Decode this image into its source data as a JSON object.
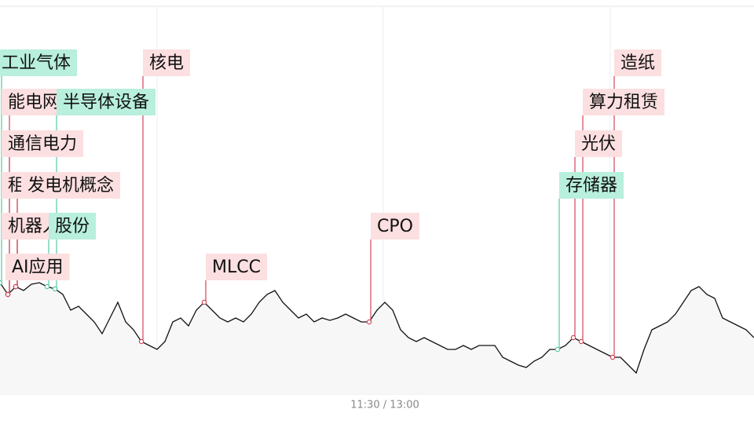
{
  "chart_data": {
    "type": "line",
    "categories": [
      null,
      null,
      null,
      null,
      null,
      null,
      null,
      null,
      null,
      null,
      null,
      null,
      null,
      null,
      null,
      null,
      null,
      null,
      null,
      null,
      null,
      null,
      null,
      null,
      null,
      null,
      null,
      null,
      null,
      null,
      null,
      null,
      null,
      null,
      null,
      null,
      null,
      null,
      null,
      null,
      null,
      null,
      null,
      null,
      null,
      null,
      null,
      null,
      null,
      "11:30 / 13:00",
      null,
      null,
      null,
      null,
      null,
      null,
      null,
      null,
      null,
      null,
      null,
      null,
      null,
      null,
      null,
      null,
      null,
      null,
      null,
      null,
      null,
      null,
      null,
      null,
      null,
      null,
      null,
      null,
      null,
      null,
      null,
      null,
      null,
      null,
      null,
      null,
      null,
      null,
      null,
      null,
      null,
      null,
      null,
      null,
      null,
      null,
      null
    ],
    "values": [
      15,
      13.5,
      14.5,
      14,
      14.8,
      15,
      14.5,
      14.2,
      13.5,
      11.5,
      12,
      11,
      10,
      8.5,
      10.5,
      12.5,
      10,
      9,
      7.5,
      7,
      6.5,
      7.5,
      10,
      10.5,
      9.5,
      11.5,
      12.5,
      11.5,
      10.5,
      10,
      10.5,
      10,
      11,
      12.5,
      13.5,
      14,
      12.5,
      11.5,
      10.5,
      11,
      10,
      10.5,
      10.2,
      10.5,
      11,
      10.5,
      10,
      10,
      11.5,
      12.5,
      11.5,
      9,
      8,
      7.5,
      8,
      7.5,
      7,
      6.5,
      6.5,
      7,
      6.5,
      7,
      7,
      7,
      5.5,
      5,
      4.5,
      4.2,
      5,
      5.5,
      6.5,
      6.5,
      7,
      8,
      7.5,
      7,
      6.5,
      6,
      5.5,
      5.5,
      4.5,
      3.5,
      6.5,
      9,
      9.5,
      10,
      11,
      12.5,
      14,
      14.5,
      13.5,
      13,
      10.5,
      10,
      9.5,
      9,
      8
    ],
    "color": "#111111",
    "ylim": [
      0,
      50
    ],
    "annotations": [
      {
        "text": "工业气体",
        "at": 0,
        "color": "green"
      },
      {
        "text": "能电网",
        "at": 1,
        "color": "red"
      },
      {
        "text": "半导体设备",
        "at": 7,
        "color": "green"
      },
      {
        "text": "通信电力",
        "at": 1,
        "color": "red"
      },
      {
        "text": "租赁",
        "at": 2,
        "color": "red"
      },
      {
        "text": "发电机概念",
        "at": 2,
        "color": "red"
      },
      {
        "text": "机器人",
        "at": 2,
        "color": "red"
      },
      {
        "text": "股份",
        "at": 6,
        "color": "green"
      },
      {
        "text": "AI应用",
        "at": 1,
        "color": "red"
      },
      {
        "text": "核电",
        "at": 18,
        "color": "red"
      },
      {
        "text": "MLCC",
        "at": 26,
        "color": "red"
      },
      {
        "text": "CPO",
        "at": 47,
        "color": "red"
      },
      {
        "text": "造纸",
        "at": 78,
        "color": "red"
      },
      {
        "text": "算力租赁",
        "at": 74,
        "color": "red"
      },
      {
        "text": "光伏",
        "at": 73,
        "color": "red"
      },
      {
        "text": "存储器",
        "at": 71,
        "color": "green"
      }
    ]
  }
}
